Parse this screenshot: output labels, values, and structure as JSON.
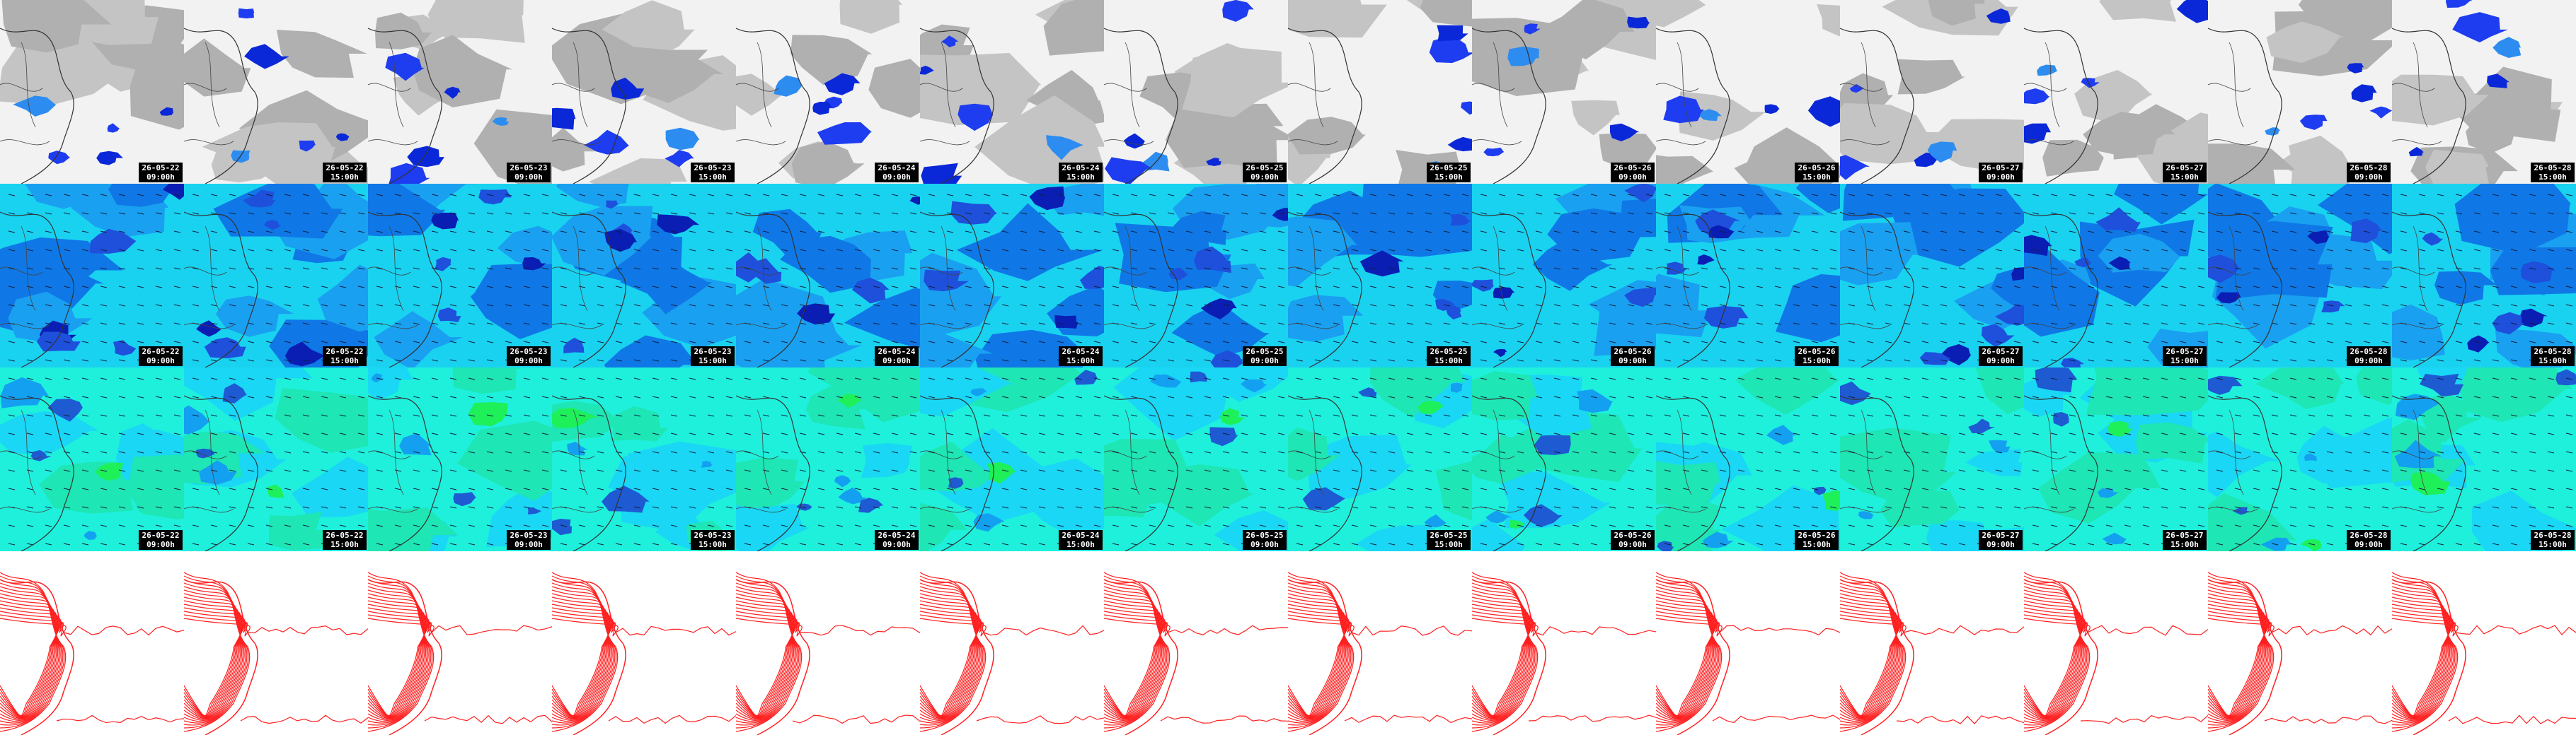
{
  "columns": [
    {
      "date": "26-05-22",
      "time": "09:00h"
    },
    {
      "date": "26-05-22",
      "time": "15:00h"
    },
    {
      "date": "26-05-23",
      "time": "09:00h"
    },
    {
      "date": "26-05-23",
      "time": "15:00h"
    },
    {
      "date": "26-05-24",
      "time": "09:00h"
    },
    {
      "date": "26-05-24",
      "time": "15:00h"
    },
    {
      "date": "26-05-25",
      "time": "09:00h"
    },
    {
      "date": "26-05-25",
      "time": "15:00h"
    },
    {
      "date": "26-05-26",
      "time": "09:00h"
    },
    {
      "date": "26-05-26",
      "time": "15:00h"
    },
    {
      "date": "26-05-27",
      "time": "09:00h"
    },
    {
      "date": "26-05-27",
      "time": "15:00h"
    },
    {
      "date": "26-05-28",
      "time": "09:00h"
    },
    {
      "date": "26-05-28",
      "time": "15:00h"
    }
  ]
}
